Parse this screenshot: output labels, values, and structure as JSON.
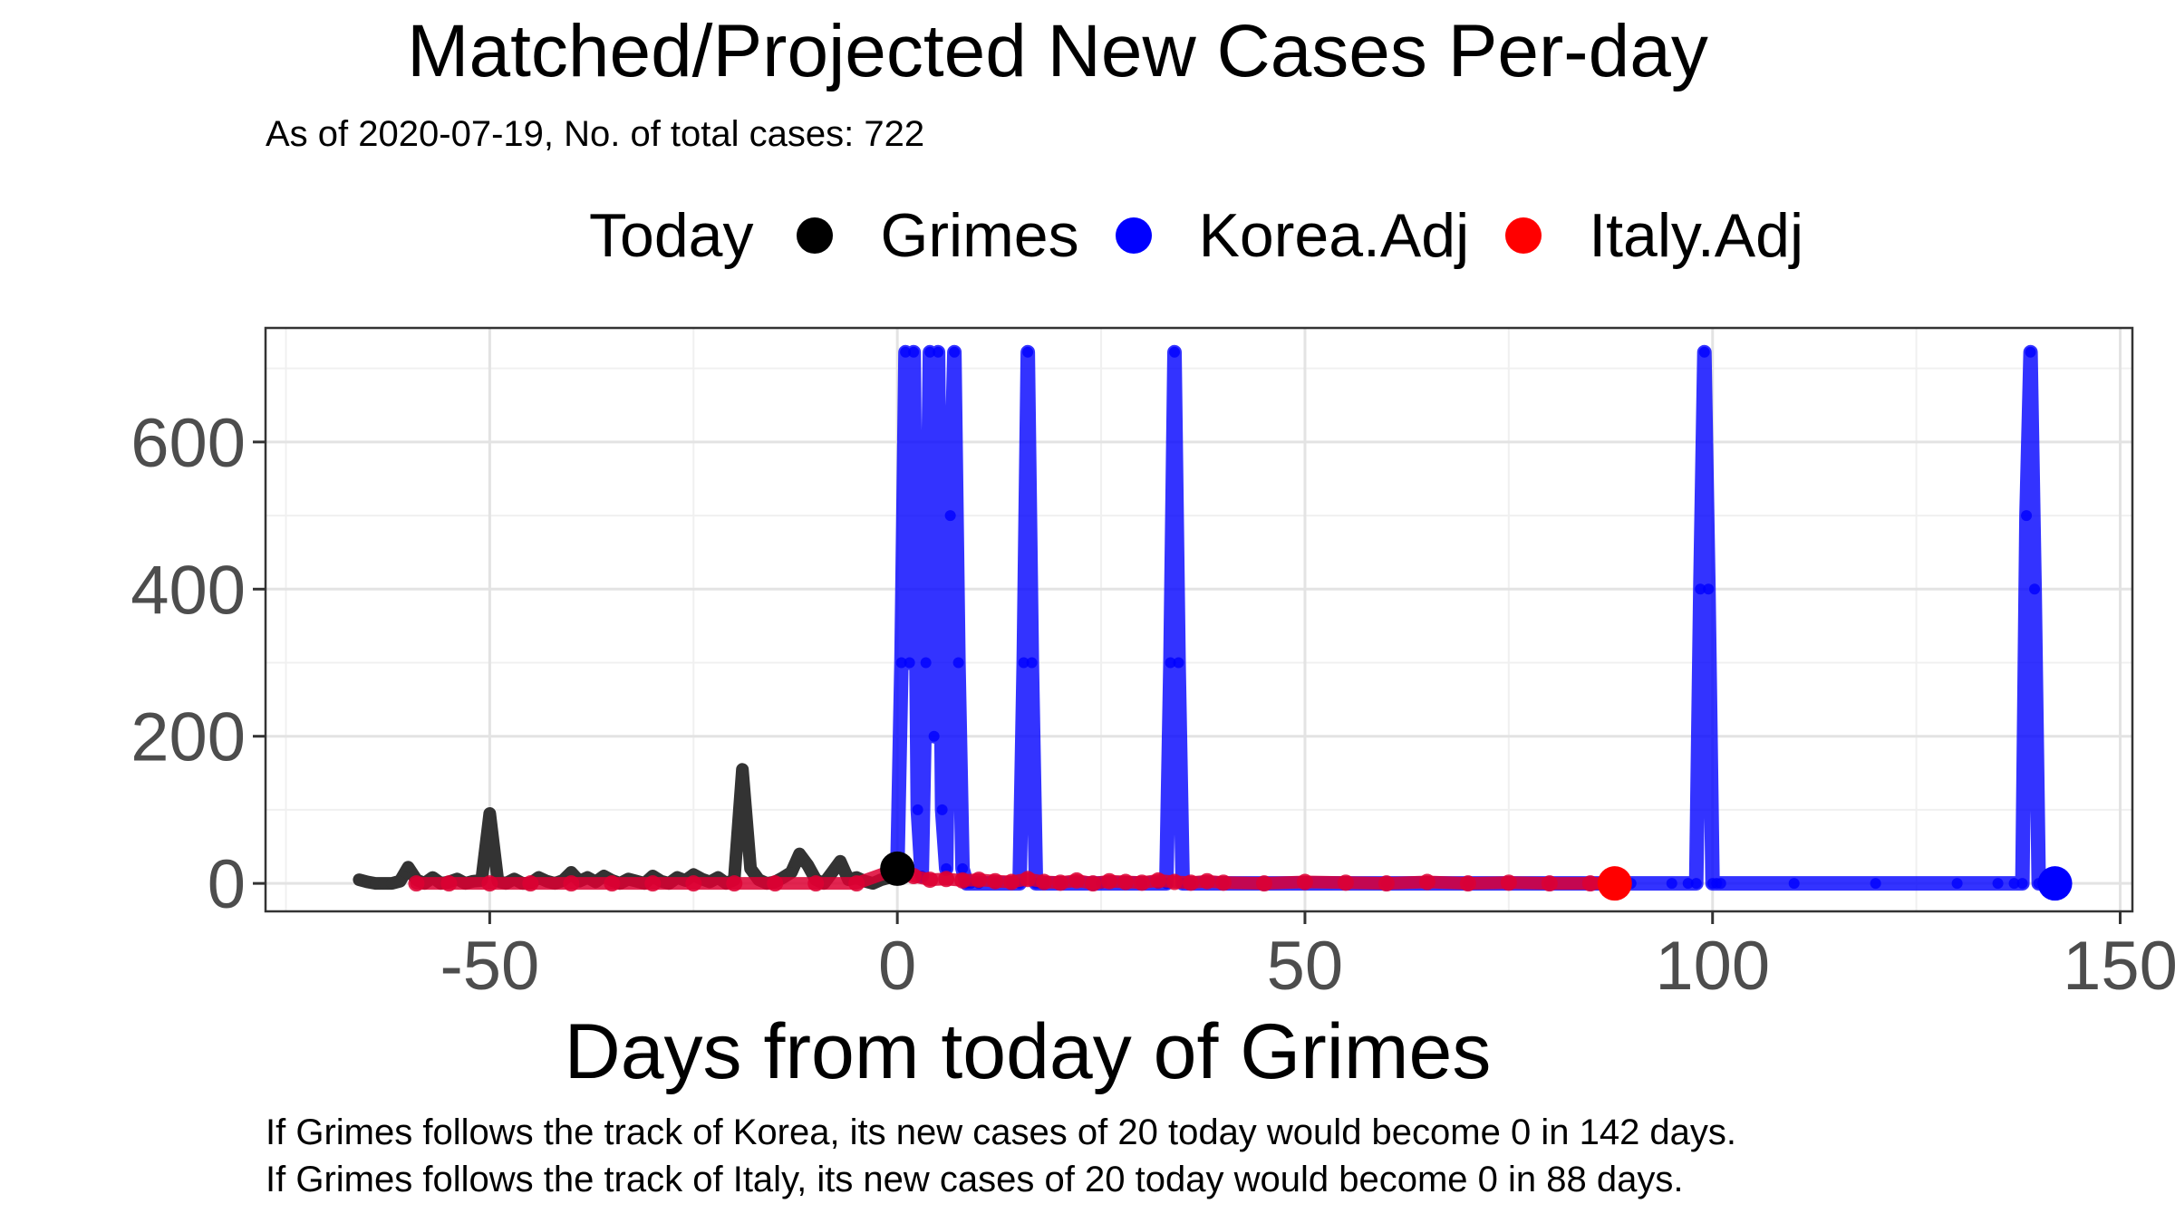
{
  "title": "Matched/Projected New Cases Per-day",
  "subtitle": "As of 2020-07-19, No. of total cases: 722",
  "legend": {
    "title": "Today",
    "items": [
      {
        "label": "Grimes",
        "color": "#000000"
      },
      {
        "label": "Korea.Adj",
        "color": "#0000ff"
      },
      {
        "label": "Italy.Adj",
        "color": "#ff0000"
      }
    ]
  },
  "captions": [
    "If Grimes follows the track of Korea, its new cases of 20 today would become 0 in 142 days.",
    "If Grimes follows the track of Italy, its new cases of 20 today would become 0 in 88 days."
  ],
  "chart_data": {
    "type": "line",
    "title": "Matched/Projected New Cases Per-day",
    "xlabel": "Days from today of Grimes",
    "ylabel": "",
    "xlim": [
      -77.5,
      151.5
    ],
    "ylim": [
      -38,
      755
    ],
    "x_ticks": [
      -50,
      0,
      50,
      100,
      150
    ],
    "x_tick_labels": [
      "-50",
      "0",
      "50",
      "100",
      "150"
    ],
    "y_ticks": [
      0,
      200,
      400,
      600
    ],
    "y_tick_labels": [
      "0",
      "200",
      "400",
      "600"
    ],
    "grid": true,
    "legend_position": "top",
    "series": [
      {
        "name": "Grimes",
        "color": "#333333",
        "x": [
          -66,
          -65,
          -64,
          -63,
          -62,
          -61,
          -60,
          -59,
          -58,
          -57,
          -56,
          -55,
          -54,
          -53,
          -52,
          -51,
          -50,
          -49,
          -48,
          -47,
          -46,
          -45,
          -44,
          -43,
          -42,
          -41,
          -40,
          -39,
          -38,
          -37,
          -36,
          -35,
          -34,
          -33,
          -32,
          -31,
          -30,
          -29,
          -28,
          -27,
          -26,
          -25,
          -24,
          -23,
          -22,
          -21,
          -20,
          -19,
          -18,
          -17,
          -16,
          -15,
          -14,
          -13,
          -12,
          -11,
          -10,
          -9,
          -8,
          -7,
          -6,
          -5,
          -4,
          -3,
          -2,
          -1,
          0
        ],
        "y": [
          5,
          2,
          0,
          0,
          0,
          3,
          22,
          5,
          0,
          8,
          0,
          2,
          6,
          0,
          3,
          4,
          95,
          3,
          0,
          6,
          0,
          0,
          8,
          3,
          0,
          4,
          15,
          3,
          8,
          2,
          10,
          4,
          0,
          6,
          3,
          0,
          10,
          3,
          0,
          8,
          4,
          12,
          6,
          2,
          8,
          0,
          5,
          155,
          20,
          5,
          0,
          2,
          8,
          15,
          40,
          25,
          5,
          0,
          15,
          30,
          5,
          8,
          3,
          0,
          5,
          8,
          20
        ]
      },
      {
        "name": "Korea.Adj",
        "color": "#0000ff",
        "x": [
          0,
          0.5,
          1,
          1.5,
          2,
          2.5,
          3,
          3.5,
          4,
          4.5,
          5,
          5.5,
          6,
          6.5,
          7,
          7.5,
          8,
          8.5,
          9,
          10,
          12,
          14,
          15,
          15.5,
          16,
          16.5,
          17,
          17.5,
          18,
          20,
          25,
          30,
          32,
          33,
          33.5,
          34,
          34.5,
          35,
          35.5,
          36,
          40,
          50,
          60,
          70,
          80,
          90,
          95,
          97,
          98,
          98.5,
          99,
          99.5,
          100,
          100.5,
          101,
          110,
          120,
          130,
          135,
          137,
          138,
          138.5,
          139,
          139.5,
          140,
          140.5,
          141,
          142
        ],
        "y": [
          20,
          300,
          722,
          300,
          722,
          100,
          10,
          300,
          722,
          200,
          722,
          100,
          20,
          500,
          722,
          300,
          20,
          0,
          0,
          0,
          0,
          0,
          0,
          300,
          722,
          300,
          0,
          0,
          0,
          0,
          0,
          0,
          0,
          0,
          300,
          722,
          300,
          0,
          0,
          0,
          0,
          0,
          0,
          0,
          0,
          0,
          0,
          0,
          0,
          400,
          722,
          400,
          0,
          0,
          0,
          0,
          0,
          0,
          0,
          0,
          0,
          500,
          722,
          400,
          0,
          0,
          0,
          0
        ]
      },
      {
        "name": "Italy.Adj",
        "color": "#dd0033",
        "x": [
          -59,
          -55,
          -50,
          -45,
          -40,
          -35,
          -30,
          -25,
          -20,
          -15,
          -10,
          -5,
          0,
          2,
          4,
          6,
          8,
          10,
          12,
          14,
          16,
          18,
          20,
          22,
          24,
          26,
          28,
          30,
          32,
          34,
          36,
          38,
          40,
          45,
          50,
          55,
          60,
          65,
          70,
          75,
          80,
          85,
          88
        ],
        "y": [
          0,
          0,
          0,
          0,
          0,
          0,
          0,
          0,
          0,
          0,
          0,
          0,
          20,
          10,
          5,
          6,
          4,
          5,
          3,
          2,
          6,
          2,
          1,
          4,
          0,
          3,
          2,
          1,
          4,
          2,
          1,
          3,
          1,
          0,
          2,
          1,
          0,
          2,
          0,
          1,
          0,
          0,
          0
        ]
      }
    ],
    "annotations": [
      {
        "label": "Grimes today",
        "x": 0,
        "y": 20,
        "color": "#000000"
      },
      {
        "label": "Korea.Adj end",
        "x": 142,
        "y": 0,
        "color": "#0000ff"
      },
      {
        "label": "Italy.Adj end",
        "x": 88,
        "y": 0,
        "color": "#ff0000"
      }
    ]
  }
}
